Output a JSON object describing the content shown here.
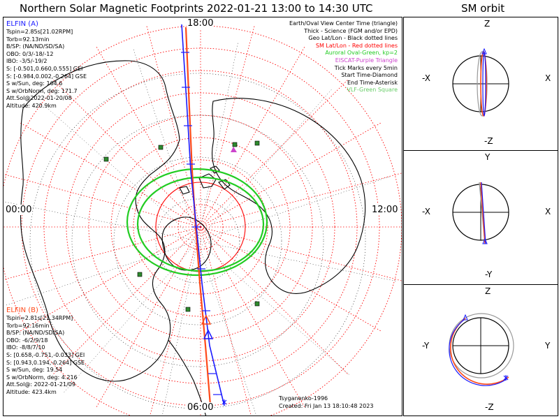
{
  "header": {
    "title": "Northern Solar Magnetic Footprints 2022-01-21 13:00 to 14:30 UTC",
    "orbit_title": "SM orbit"
  },
  "mlt_labels": {
    "top": "18:00",
    "left": "00:00",
    "right": "12:00",
    "bottom": "06:00"
  },
  "elfin_a": {
    "name": "ELFIN (A)",
    "color": "#1a1aff",
    "lines": [
      "Tspin=2.85s[21.02RPM]",
      "Torb=92.13min",
      "B/SP: (NA/ND/SD/SA)",
      "OBO: 0/3/-18/-12",
      "IBO: -3/5/-19/2",
      "S: [-0.501,0.660,0.555] GEI",
      "S: [-0.984,0.002,-0.264] GSE",
      "S w/Sun, deg: 164.6",
      "S w/OrbNorm, deg: 171.7",
      "Att.Sol@2022-01-20/08",
      "Altitude: 420.9km"
    ]
  },
  "elfin_b": {
    "name": "ELFIN (B)",
    "color": "#ff4a1a",
    "lines": [
      "Tspin=2.81s[21.34RPM]",
      "Torb=92.16min",
      "B/SP: (NA/ND/SD/SA)",
      "OBO: -6/2/9/18",
      "IBO: -8/8/7/10",
      "S: [0.658,-0.751,-0.033] GEI",
      "S: [0.943,0.194,-0.264] GSE",
      "S w/Sun, deg: 19.54",
      "S w/OrbNorm, deg: 4.216",
      "Att.Sol@: 2022-01-21/09",
      "Altitude: 423.4km"
    ]
  },
  "legend": [
    {
      "text": "Earth/Oval View Center Time (triangle)",
      "color": "#000000"
    },
    {
      "text": "Thick - Science (FGM and/or EPD)",
      "color": "#000000"
    },
    {
      "text": "Geo Lat/Lon - Black dotted lines",
      "color": "#000000"
    },
    {
      "text": "SM Lat/Lon - Red dotted lines",
      "color": "#ff0000"
    },
    {
      "text": "Auroral Oval-Green, kp=2",
      "color": "#22cc22"
    },
    {
      "text": "EISCAT-Purple Triangle",
      "color": "#cc44cc"
    },
    {
      "text": "Tick Marks every 5min",
      "color": "#000000"
    },
    {
      "text": "Start Time-Diamond",
      "color": "#000000"
    },
    {
      "text": "End Time-Asterisk",
      "color": "#000000"
    },
    {
      "text": "VLF-Green Square",
      "color": "#66cc66"
    }
  ],
  "credits": {
    "model": "Tsyganenko-1996",
    "created": "Created: Fri Jan 13 18:10:48 2023"
  },
  "orbit_views": [
    {
      "top": "Z",
      "bottom": "-Z",
      "left": "-X",
      "right": "X"
    },
    {
      "top": "Y",
      "bottom": "-Y",
      "left": "-X",
      "right": "X"
    },
    {
      "top": "Z",
      "bottom": "-Z",
      "left": "-Y",
      "right": "Y"
    }
  ],
  "colors": {
    "sm_grid": "#ff0000",
    "auroral_oval": "#22cc22",
    "vlf": "#2e8b2e",
    "eiscat": "#cc44cc",
    "coast": "#000000"
  }
}
